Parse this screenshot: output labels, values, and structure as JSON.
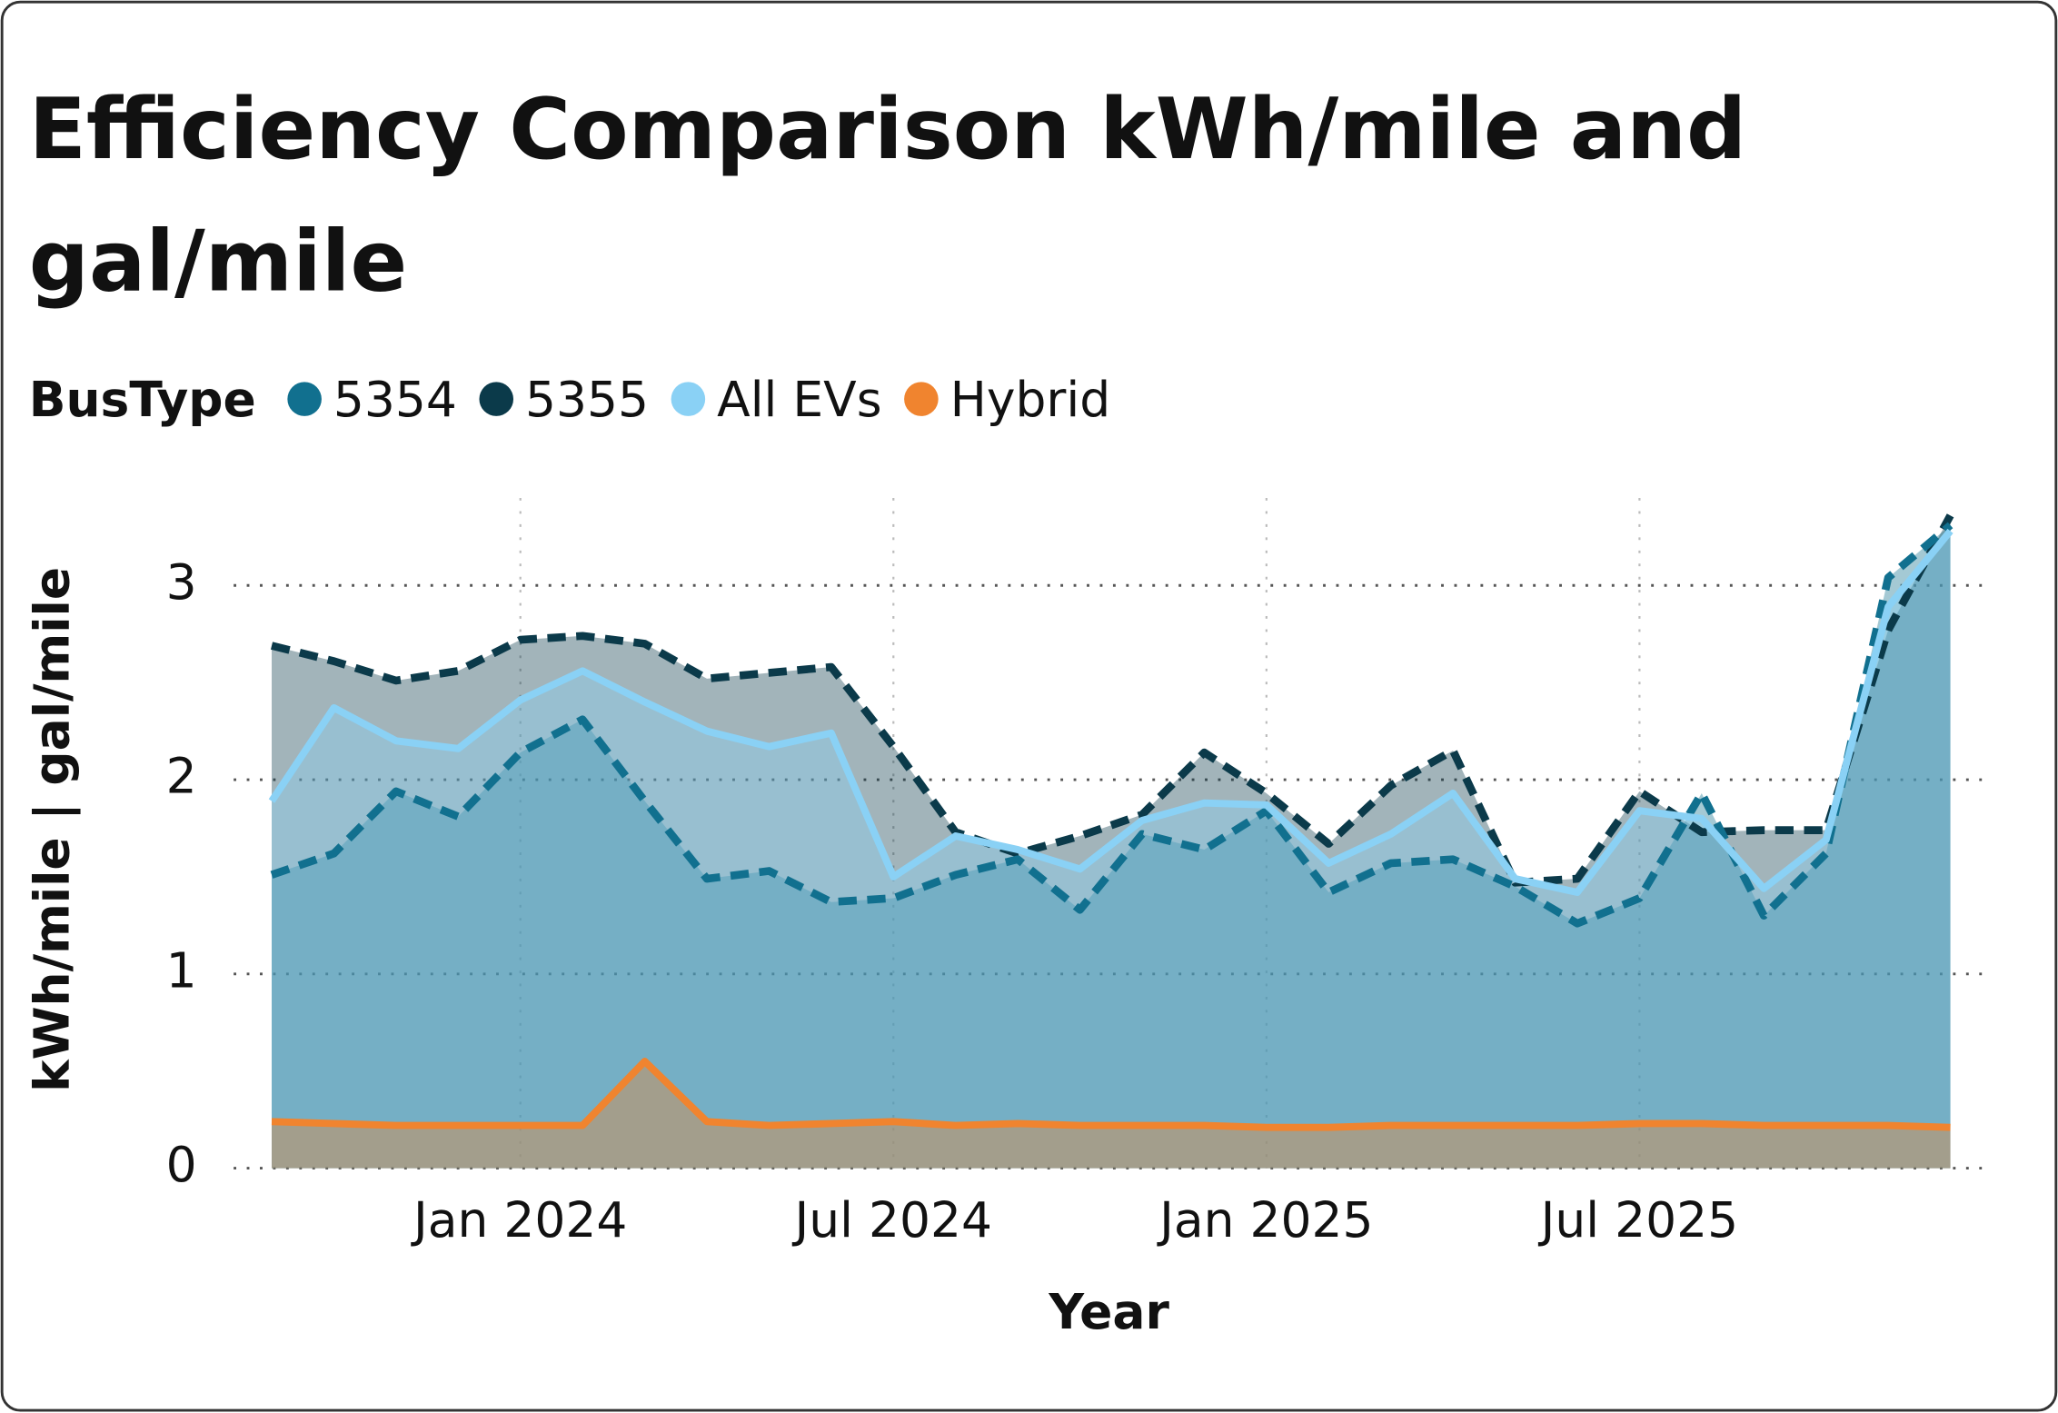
{
  "chart_data": {
    "type": "area",
    "title": "Efficiency Comparison kWh/mile and gal/mile",
    "legend_title": "BusType",
    "x_label": "Year",
    "y_label": "kWh/mile | gal/mile",
    "x": [
      "2023-09",
      "2023-10",
      "2023-11",
      "2023-12",
      "2024-01",
      "2024-02",
      "2024-03",
      "2024-04",
      "2024-05",
      "2024-06",
      "2024-07",
      "2024-08",
      "2024-09",
      "2024-10",
      "2024-11",
      "2024-12",
      "2025-01",
      "2025-02",
      "2025-03",
      "2025-04",
      "2025-05",
      "2025-06",
      "2025-07",
      "2025-08",
      "2025-09",
      "2025-10",
      "2025-11",
      "2025-12"
    ],
    "xlim": [
      "2023-09",
      "2025-12"
    ],
    "xticks": [
      {
        "value": "2024-01",
        "label": "Jan 2024"
      },
      {
        "value": "2024-07",
        "label": "Jul 2024"
      },
      {
        "value": "2025-01",
        "label": "Jan 2025"
      },
      {
        "value": "2025-07",
        "label": "Jul 2025"
      }
    ],
    "ylim": [
      0,
      3.45
    ],
    "yticks": [
      0,
      1,
      2,
      3
    ],
    "grid": true,
    "series": [
      {
        "name": "5354",
        "color": "#11708f",
        "style": "dashed",
        "values": [
          1.51,
          1.62,
          1.94,
          1.81,
          2.14,
          2.31,
          1.89,
          1.49,
          1.53,
          1.37,
          1.39,
          1.51,
          1.59,
          1.33,
          1.72,
          1.64,
          1.84,
          1.42,
          1.57,
          1.59,
          1.45,
          1.26,
          1.39,
          1.93,
          1.3,
          1.62,
          3.04,
          3.31
        ]
      },
      {
        "name": "5355",
        "color": "#0b3a4a",
        "style": "dashed",
        "values": [
          2.69,
          2.61,
          2.51,
          2.56,
          2.72,
          2.74,
          2.7,
          2.52,
          2.55,
          2.58,
          2.17,
          1.73,
          1.62,
          1.71,
          1.82,
          2.14,
          1.93,
          1.67,
          1.97,
          2.15,
          1.47,
          1.49,
          1.94,
          1.73,
          1.74,
          1.74,
          2.77,
          3.36
        ]
      },
      {
        "name": "All EVs",
        "color": "#8ad1f5",
        "style": "solid",
        "values": [
          1.89,
          2.37,
          2.2,
          2.16,
          2.41,
          2.56,
          2.4,
          2.25,
          2.17,
          2.24,
          1.5,
          1.71,
          1.64,
          1.54,
          1.79,
          1.88,
          1.87,
          1.57,
          1.72,
          1.93,
          1.49,
          1.42,
          1.84,
          1.8,
          1.44,
          1.69,
          2.89,
          3.28
        ]
      },
      {
        "name": "Hybrid",
        "color": "#f0842f",
        "style": "solid",
        "values": [
          0.24,
          0.23,
          0.22,
          0.22,
          0.22,
          0.22,
          0.55,
          0.24,
          0.22,
          0.23,
          0.24,
          0.22,
          0.23,
          0.22,
          0.22,
          0.22,
          0.21,
          0.21,
          0.22,
          0.22,
          0.22,
          0.22,
          0.23,
          0.23,
          0.22,
          0.22,
          0.22,
          0.21
        ]
      }
    ]
  }
}
